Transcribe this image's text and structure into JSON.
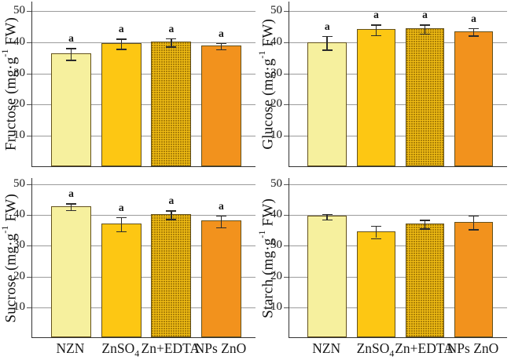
{
  "figure": {
    "background": "#ffffff",
    "gridline_color": "#9b9b9b",
    "axis_color": "#333333",
    "error_bar_color": "#2b2b2b",
    "text_color": "#1a1a1a",
    "bar_border_color": "#63511c",
    "bar_fills": [
      "#F6F09E",
      "#FDC713",
      "#F0BC14",
      "#F2921D"
    ],
    "bar_patterns": [
      null,
      null,
      "dots",
      null
    ],
    "pattern_dot_color": "#8a6400",
    "treatment_labels_plain": [
      "NZN",
      "ZnSO4",
      "Zn+EDTA",
      "NPs ZnO"
    ]
  },
  "chart_data": [
    {
      "type": "bar",
      "name": "Fructose",
      "ylabel": {
        "pre": "Fructose (mg·g",
        "sup": "-1",
        "post": " FW)"
      },
      "xlabel": "",
      "categories": [
        {
          "text": "NZN"
        },
        {
          "text": "ZnSO",
          "sub": "4"
        },
        {
          "text": "Zn+EDTA"
        },
        {
          "text": "NPs ZnO"
        }
      ],
      "values": [
        36.2,
        39.5,
        39.9,
        38.8
      ],
      "errors": [
        1.9,
        1.6,
        1.3,
        1.0
      ],
      "sig_letters": [
        "a",
        "a",
        "a",
        "a"
      ],
      "yticks": [
        10,
        20,
        30,
        40,
        50
      ],
      "ylim": [
        0,
        53
      ],
      "grid": true,
      "show_x_labels": false
    },
    {
      "type": "bar",
      "name": "Glucose",
      "ylabel": {
        "pre": "Glucose (mg·g",
        "sup": "-1",
        "post": " FW)"
      },
      "xlabel": "",
      "categories": [
        {
          "text": "NZN"
        },
        {
          "text": "ZnSO",
          "sub": "4"
        },
        {
          "text": "Zn+EDTA"
        },
        {
          "text": "NPs ZnO"
        }
      ],
      "values": [
        39.8,
        44.0,
        44.2,
        43.3
      ],
      "errors": [
        2.2,
        1.7,
        1.4,
        1.2
      ],
      "sig_letters": [
        "a",
        "a",
        "a",
        "a"
      ],
      "yticks": [
        10,
        20,
        30,
        40,
        50
      ],
      "ylim": [
        0,
        53
      ],
      "grid": true,
      "show_x_labels": false
    },
    {
      "type": "bar",
      "name": "Sucrose",
      "ylabel": {
        "pre": "Sucrose (mg·g",
        "sup": "-1",
        "post": " FW)"
      },
      "xlabel": "",
      "categories": [
        {
          "text": "NZN"
        },
        {
          "text": "ZnSO",
          "sub": "4"
        },
        {
          "text": "Zn+EDTA"
        },
        {
          "text": "NPs ZnO"
        }
      ],
      "values": [
        42.7,
        37.0,
        40.1,
        37.9
      ],
      "errors": [
        1.1,
        2.3,
        1.4,
        1.9
      ],
      "sig_letters": [
        "a",
        "a",
        "a",
        "a"
      ],
      "yticks": [
        10,
        20,
        30,
        40,
        50
      ],
      "ylim": [
        0,
        52
      ],
      "grid": true,
      "show_x_labels": true
    },
    {
      "type": "bar",
      "name": "Starch",
      "ylabel": {
        "pre": "Starch (mg·g",
        "sup": "-1",
        "post": " FW)"
      },
      "xlabel": "",
      "categories": [
        {
          "text": "NZN"
        },
        {
          "text": "ZnSO",
          "sub": "4"
        },
        {
          "text": "Zn+EDTA"
        },
        {
          "text": "NPs ZnO"
        }
      ],
      "values": [
        39.4,
        34.5,
        37.0,
        37.6
      ],
      "errors": [
        0.9,
        2.0,
        1.4,
        2.2
      ],
      "sig_letters": [],
      "yticks": [
        10,
        20,
        30,
        40,
        50
      ],
      "ylim": [
        0,
        52
      ],
      "grid": true,
      "show_x_labels": true
    }
  ]
}
